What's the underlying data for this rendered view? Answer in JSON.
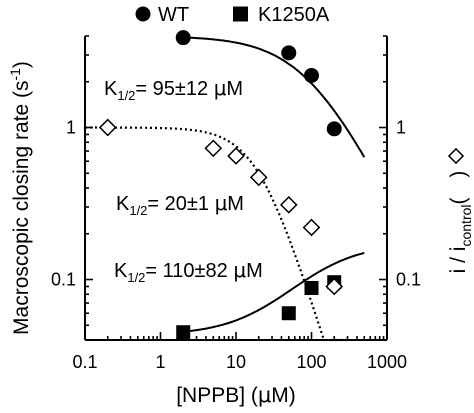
{
  "chart_data": {
    "type": "scatter",
    "xscale": "log",
    "yscale": "log",
    "xlim": [
      0.1,
      1000
    ],
    "ylim": [
      0.04,
      4
    ],
    "xlabel_pre": "[NPPB] (",
    "xlabel_mu": "μ",
    "xlabel_post": "M)",
    "ylabel_left": "Macroscopic closing rate (s",
    "ylabel_left_sup": "-1",
    "ylabel_left_end": ")",
    "ylabel_right_pre": "i / i",
    "ylabel_right_sub": "control",
    "ylabel_right_post": "(",
    "ylabel_right_end": ")",
    "x_ticks": [
      "0.1",
      "1",
      "10",
      "100",
      "1000"
    ],
    "y_ticks_left": [
      "1",
      "0.1"
    ],
    "y_ticks_right": [
      "1",
      "0.1"
    ],
    "legend": [
      {
        "label": "WT",
        "marker": "circle"
      },
      {
        "label": "K1250A",
        "marker": "square"
      }
    ],
    "series": [
      {
        "name": "WT",
        "marker": "circle",
        "points": [
          {
            "x": 2,
            "y": 3.9
          },
          {
            "x": 50,
            "y": 3.1
          },
          {
            "x": 100,
            "y": 2.2
          },
          {
            "x": 200,
            "y": 0.98
          }
        ],
        "fit": {
          "style": "solid",
          "k_half": 95,
          "A": 4.0,
          "n": 1,
          "x_from": 2,
          "x_to": 500
        }
      },
      {
        "name": "K1250A",
        "marker": "square",
        "points": [
          {
            "x": 2,
            "y": 0.045
          },
          {
            "x": 50,
            "y": 0.06
          },
          {
            "x": 100,
            "y": 0.088
          },
          {
            "x": 200,
            "y": 0.096
          }
        ],
        "fit": {
          "style": "solid",
          "k_half": 110,
          "A": 0.13,
          "n": 1,
          "x_from": 2,
          "x_to": 500
        }
      },
      {
        "marker": "diamond",
        "points": [
          {
            "x": 0.2,
            "y": 1.0
          },
          {
            "x": 5,
            "y": 0.73
          },
          {
            "x": 10,
            "y": 0.65
          },
          {
            "x": 20,
            "y": 0.47
          },
          {
            "x": 50,
            "y": 0.31
          },
          {
            "x": 100,
            "y": 0.22
          },
          {
            "x": 200,
            "y": 0.09
          }
        ],
        "fit": {
          "style": "dotted",
          "k_half": 20,
          "A": 1.0,
          "n": 1,
          "x_from": 0.1,
          "x_to": 300,
          "exp": 1.6
        }
      }
    ],
    "annotations": [
      {
        "pre": "K",
        "sub": "1/2",
        "mid": "= 95±12 ",
        "mu": "μ",
        "post": "M"
      },
      {
        "pre": "K",
        "sub": "1/2",
        "mid": "= 20±1 ",
        "mu": "μ",
        "post": "M"
      },
      {
        "pre": "K",
        "sub": "1/2",
        "mid": "= 110±82 ",
        "mu": "μ",
        "post": "M"
      }
    ]
  }
}
